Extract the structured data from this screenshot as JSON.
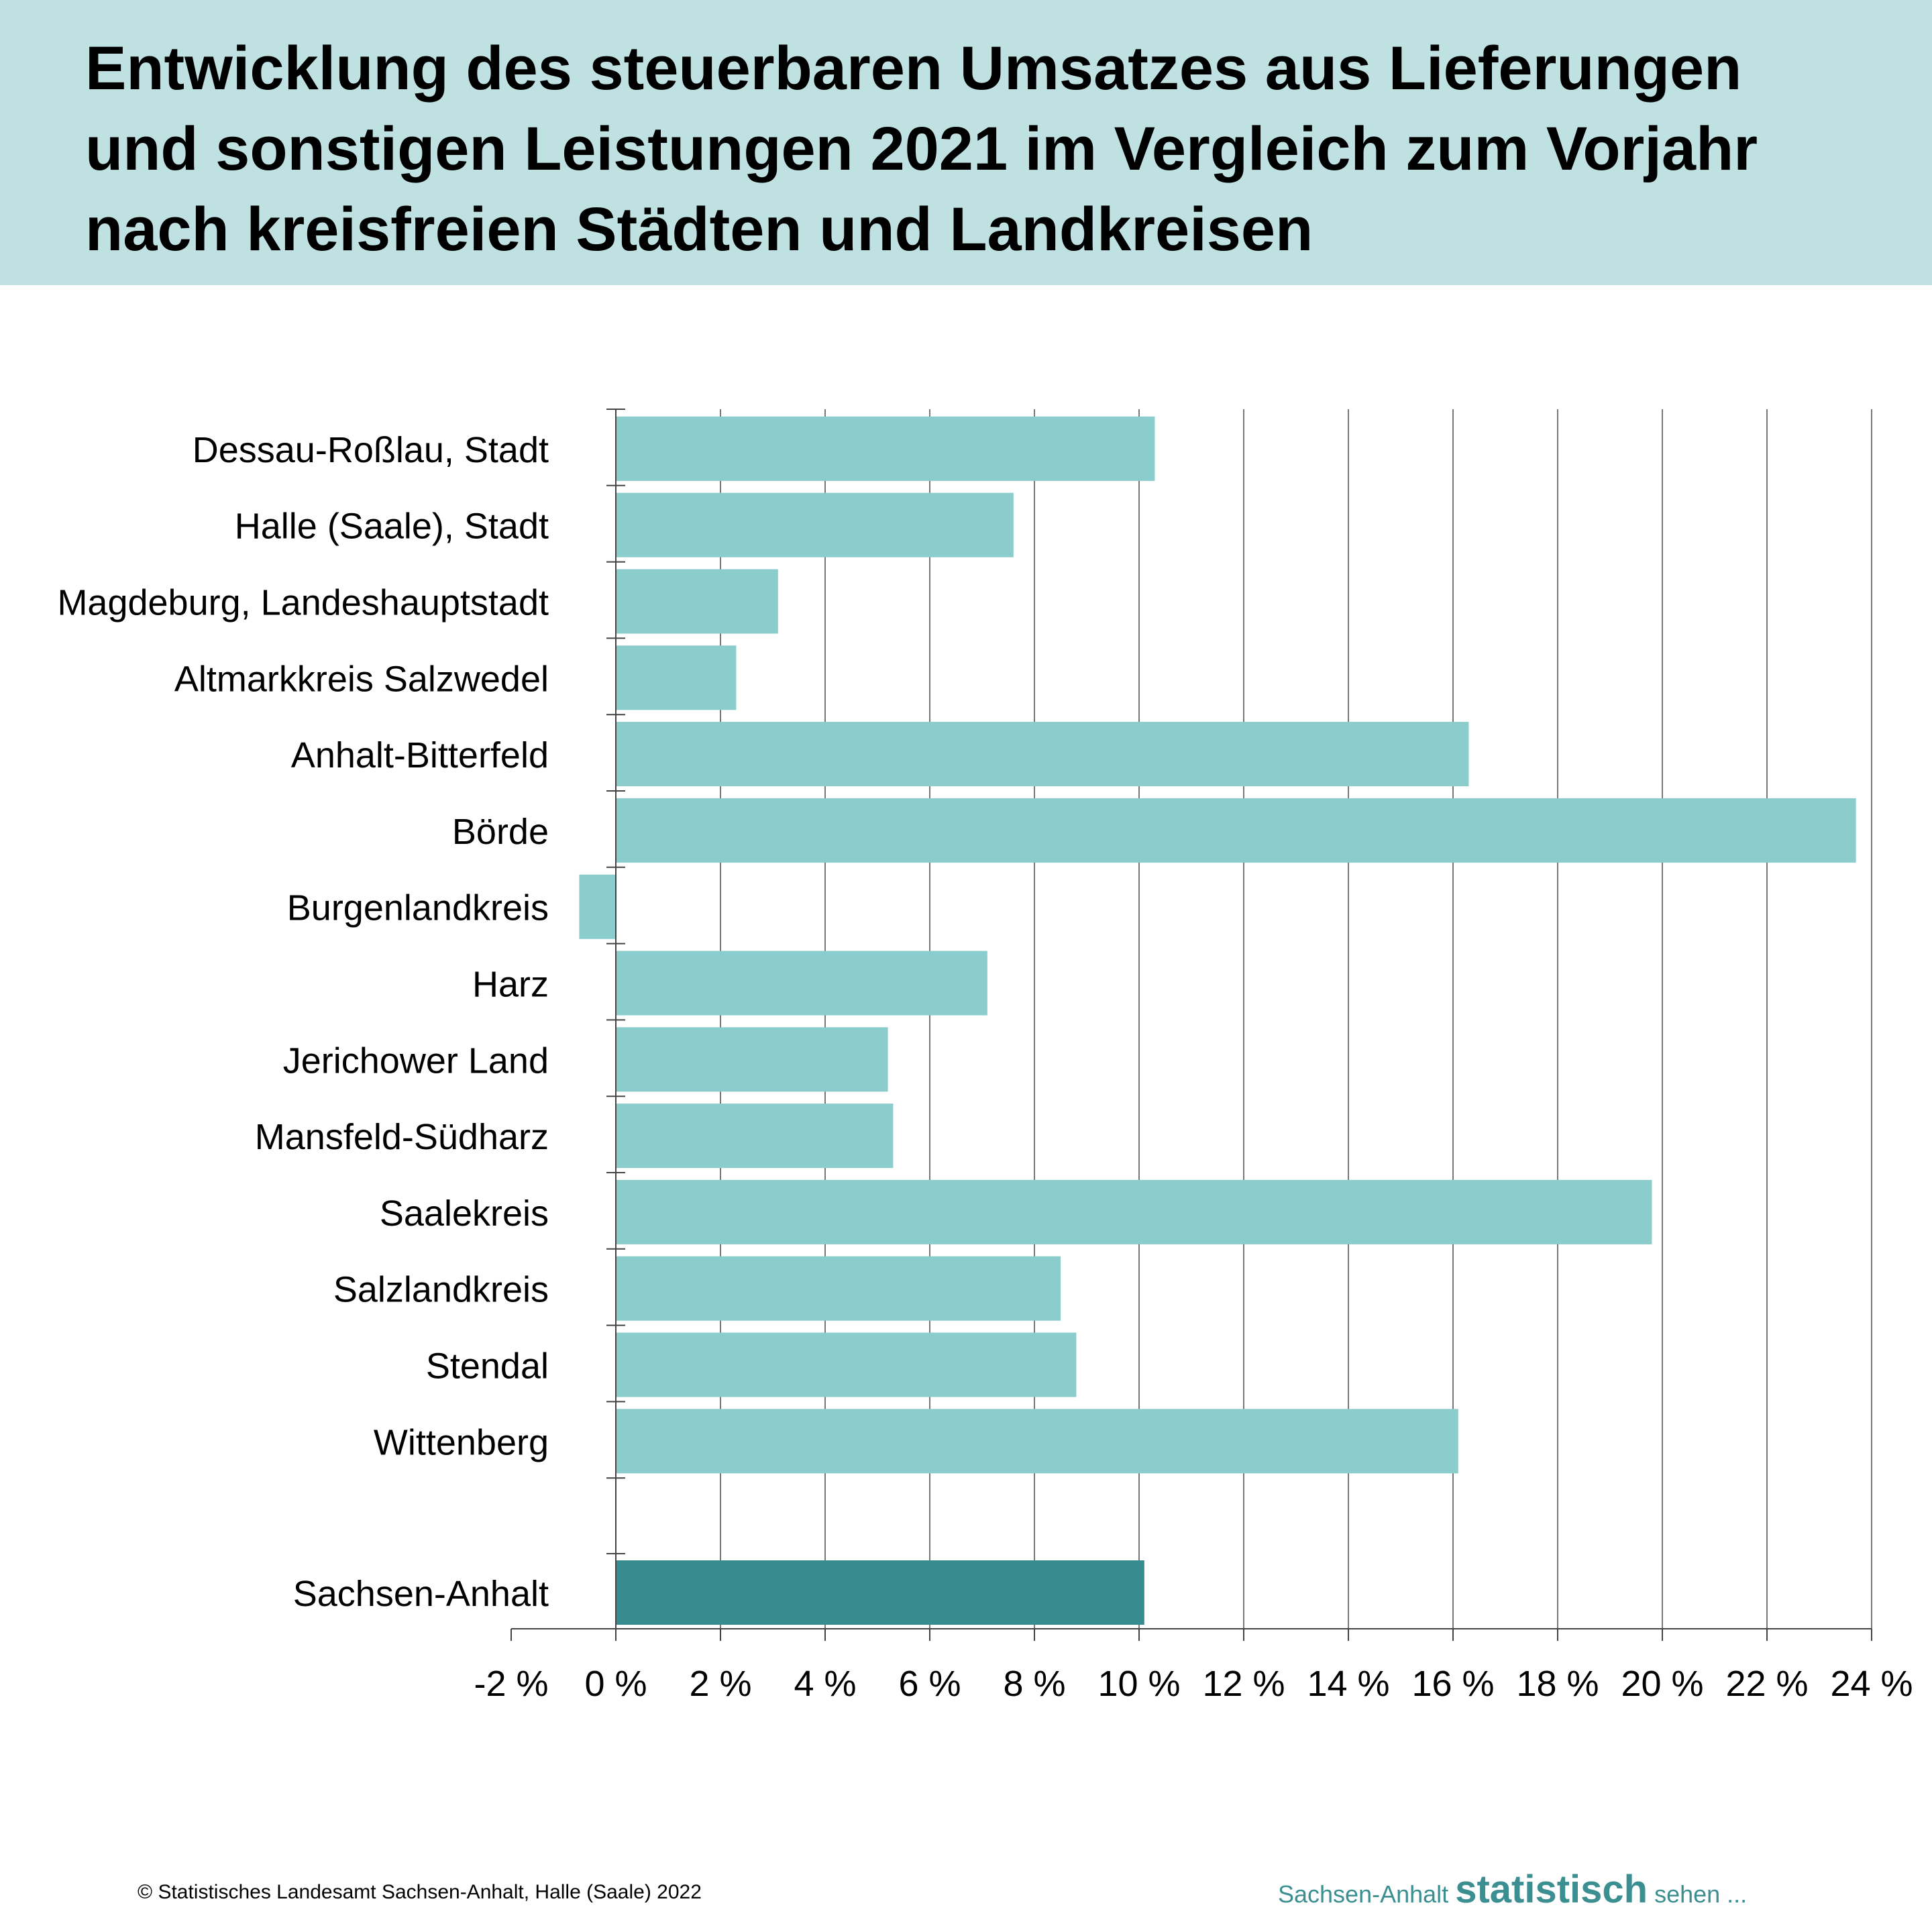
{
  "title": "Entwicklung des steuerbaren Umsatzes aus Lieferungen\nund sonstigen Leistungen 2021 im Vergleich zum Vorjahr\nnach kreisfreien Städten und Landkreisen",
  "footer": {
    "copyright": "© Statistisches Landesamt Sachsen-Anhalt, Halle (Saale) 2022",
    "brand_prefix": "Sachsen-Anhalt",
    "brand_main": "statistisch",
    "brand_suffix": "sehen ..."
  },
  "colors": {
    "title_band": "#bfe1e2",
    "bar": "#8bcdcd",
    "bar_total": "#368b8f",
    "brand": "#3c8f91"
  },
  "chart_data": {
    "type": "bar",
    "orientation": "horizontal",
    "categories": [
      "Dessau-Roßlau, Stadt",
      "Halle (Saale), Stadt",
      "Magdeburg, Landeshauptstadt",
      "Altmarkkreis Salzwedel",
      "Anhalt-Bitterfeld",
      "Börde",
      "Burgenlandkreis",
      "Harz",
      "Jerichower Land",
      "Mansfeld-Südharz",
      "Saalekreis",
      "Salzlandkreis",
      "Stendal",
      "Wittenberg"
    ],
    "values": [
      10.3,
      7.6,
      3.1,
      2.3,
      16.3,
      23.7,
      -0.7,
      7.1,
      5.2,
      5.3,
      19.8,
      8.5,
      8.8,
      16.1
    ],
    "total": {
      "label": "Sachsen-Anhalt",
      "value": 10.1
    },
    "xlim": [
      -2,
      24
    ],
    "xticks": [
      -2,
      0,
      2,
      4,
      6,
      8,
      10,
      12,
      14,
      16,
      18,
      20,
      22,
      24
    ],
    "tick_labels": [
      "-2 %",
      "0 %",
      "2 %",
      "4 %",
      "6 %",
      "8 %",
      "10 %",
      "12 %",
      "14 %",
      "16 %",
      "18 %",
      "20 %",
      "22 %",
      "24 %"
    ],
    "grid": true,
    "legend": "none"
  }
}
